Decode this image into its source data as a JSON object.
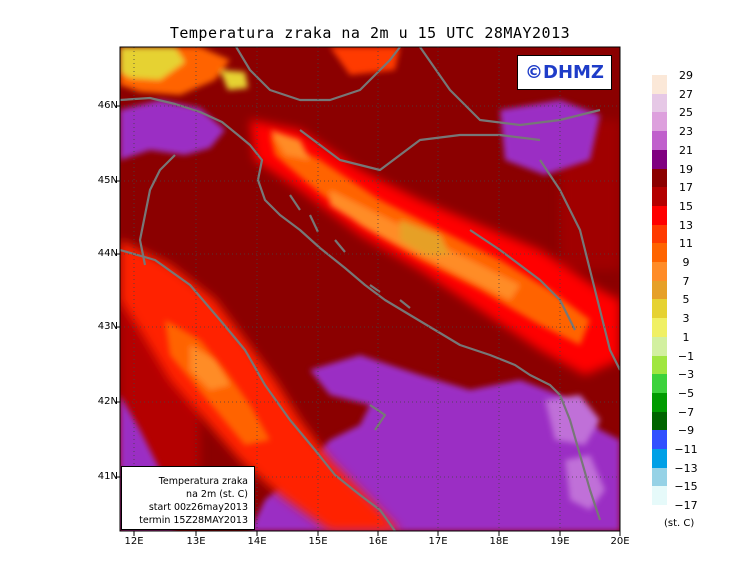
{
  "title": "Temperatura zraka na 2m u 15 UTC 28MAY2013",
  "logo": "©DHMZ",
  "info": {
    "line1": "Temperatura zraka",
    "line2": "na 2m (st. C)",
    "line3": "start 00z26may2013",
    "line4": "termin 15Z28MAY2013"
  },
  "lat_labels": [
    "46N",
    "45N",
    "44N",
    "43N",
    "42N",
    "41N"
  ],
  "lon_labels": [
    "12E",
    "13E",
    "14E",
    "15E",
    "16E",
    "17E",
    "18E",
    "19E",
    "20E"
  ],
  "legend": {
    "units": "(st. C)",
    "labels": [
      "29",
      "27",
      "25",
      "23",
      "21",
      "19",
      "17",
      "15",
      "13",
      "11",
      "9",
      "7",
      "5",
      "3",
      "1",
      "−1",
      "−3",
      "−5",
      "−7",
      "−9",
      "−11",
      "−13",
      "−15",
      "−17"
    ],
    "colors": [
      "#fbe8d8",
      "#e6c8e6",
      "#dda0dd",
      "#c060cc",
      "#800080",
      "#8b0000",
      "#b40000",
      "#ff0000",
      "#ff3a00",
      "#ff6400",
      "#ff8c28",
      "#e6a028",
      "#e6d232",
      "#f0f064",
      "#d2f0a0",
      "#a0e640",
      "#3cd23c",
      "#009b00",
      "#006400",
      "#3250ff",
      "#00a0e6",
      "#96d2e6",
      "#e6fafa",
      "#ffffff"
    ]
  },
  "colors": {
    "sea_purple": "#9b2fc4",
    "land_dark_red": "#8b0000",
    "coast_line": "#777777"
  }
}
